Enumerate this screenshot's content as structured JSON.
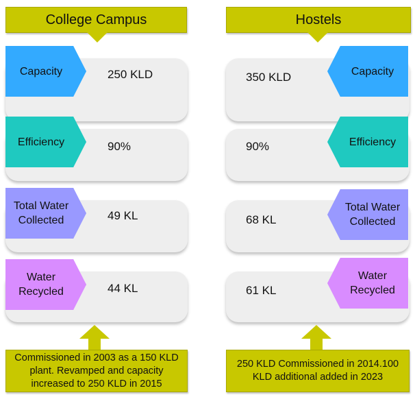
{
  "campus": {
    "title": "College Campus",
    "rows": [
      {
        "label": "Capacity",
        "value": "250 KLD",
        "color": "#33aaff"
      },
      {
        "label": "Efficiency",
        "value": "90%",
        "color": "#1fc9c0"
      },
      {
        "label": "Total Water Collected",
        "value": "49 KL",
        "color": "#9999ff"
      },
      {
        "label": "Water Recycled",
        "value": "44 KL",
        "color": "#d98cff"
      }
    ],
    "note": "Commissioned in 2003 as a 150 KLD plant. Revamped and capacity increased to 250 KLD in 2015"
  },
  "hostels": {
    "title": "Hostels",
    "rows": [
      {
        "label": "Capacity",
        "value": "350 KLD",
        "color": "#33aaff"
      },
      {
        "label": "Efficiency",
        "value": "90%",
        "color": "#1fc9c0"
      },
      {
        "label": "Total Water Collected",
        "value": "68 KL",
        "color": "#9999ff"
      },
      {
        "label": "Water Recycled",
        "value": "61 KL",
        "color": "#d98cff"
      }
    ],
    "note": "250 KLD Commissioned in 2014.100 KLD additional added in 2023"
  },
  "colors": {
    "banner": "#c8c800",
    "row_bg": "#eeeeee"
  }
}
